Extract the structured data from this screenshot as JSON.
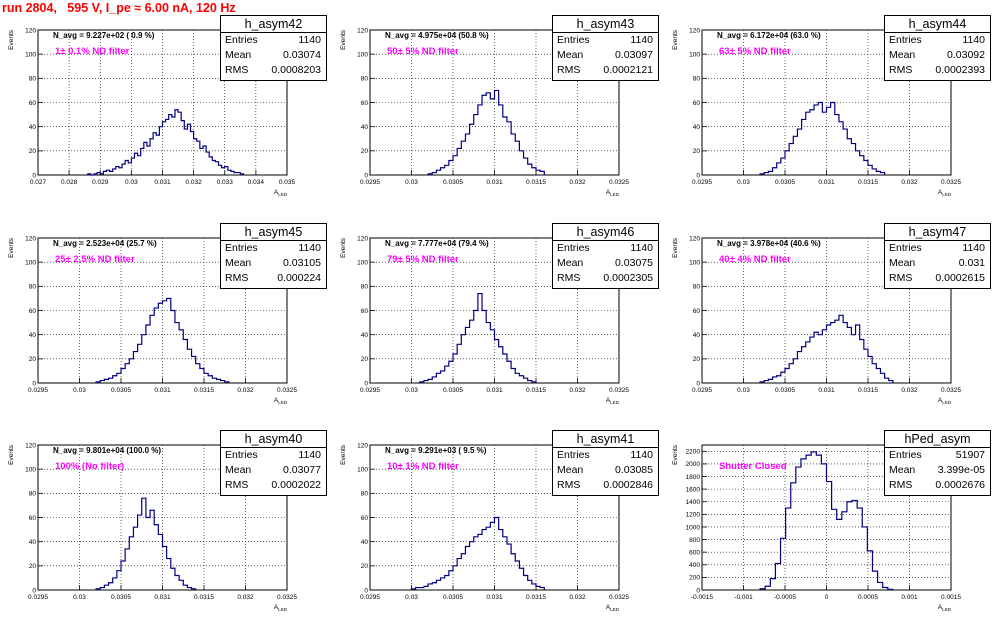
{
  "page": {
    "title": "run 2804,   595 V, I_pe ≈ 6.00 nA, 120 Hz"
  },
  "colors": {
    "histogram_line": "#000080",
    "annotation_text": "#ff00ff",
    "title_text": "#ff0000",
    "grid": "#000000"
  },
  "chart_data": [
    {
      "type": "histogram",
      "name": "h_asym42",
      "stats": {
        "entries": "1140",
        "mean": "0.03074",
        "rms": "0.0008203"
      },
      "navg": "N_avg = 9.227e+02 ( 0.9 %)",
      "filter": "1± 0.1% ND filter",
      "ylabel": "Events",
      "xlabel": "A_LED",
      "xlim": [
        0.027,
        0.035
      ],
      "ylim": [
        0,
        120
      ],
      "xticks": [
        "0.027",
        "0.028",
        "0.029",
        "0.03",
        "0.031",
        "0.032",
        "0.033",
        "0.034",
        "0.035"
      ],
      "yticks": [
        "0",
        "20",
        "40",
        "60",
        "80",
        "100",
        "120"
      ],
      "bin_edges_range": [
        0.0286,
        0.0336
      ],
      "counts": [
        1,
        0,
        1,
        2,
        1,
        3,
        4,
        3,
        5,
        7,
        6,
        9,
        12,
        10,
        14,
        18,
        16,
        22,
        27,
        24,
        30,
        35,
        33,
        40,
        44,
        46,
        50,
        48,
        54,
        52,
        45,
        38,
        42,
        36,
        30,
        28,
        22,
        24,
        19,
        15,
        12,
        11,
        8,
        6,
        7,
        4,
        3,
        2,
        2,
        1
      ]
    },
    {
      "type": "histogram",
      "name": "h_asym43",
      "stats": {
        "entries": "1140",
        "mean": "0.03097",
        "rms": "0.0002121"
      },
      "navg": "N_avg = 4.975e+04 (50.8 %)",
      "filter": "50± 5% ND filter",
      "ylabel": "Events",
      "xlabel": "A_LED",
      "xlim": [
        0.0295,
        0.0325
      ],
      "ylim": [
        0,
        120
      ],
      "xticks": [
        "0.0295",
        "0.03",
        "0.0305",
        "0.031",
        "0.0315",
        "0.032",
        "0.0325"
      ],
      "yticks": [
        "0",
        "20",
        "40",
        "60",
        "80",
        "100",
        "120"
      ],
      "bin_edges_range": [
        0.0302,
        0.0316
      ],
      "counts": [
        1,
        2,
        4,
        6,
        8,
        12,
        16,
        22,
        28,
        34,
        42,
        50,
        58,
        66,
        68,
        63,
        70,
        58,
        48,
        44,
        34,
        28,
        20,
        14,
        9,
        6,
        4,
        3
      ]
    },
    {
      "type": "histogram",
      "name": "h_asym44",
      "stats": {
        "entries": "1140",
        "mean": "0.03092",
        "rms": "0.0002393"
      },
      "navg": "N_avg = 6.172e+04 (63.0 %)",
      "filter": "63± 5% ND filter",
      "ylabel": "Events",
      "xlabel": "A_LED",
      "xlim": [
        0.0295,
        0.0325
      ],
      "ylim": [
        0,
        120
      ],
      "xticks": [
        "0.0295",
        "0.03",
        "0.0305",
        "0.031",
        "0.0315",
        "0.032",
        "0.0325"
      ],
      "yticks": [
        "0",
        "20",
        "40",
        "60",
        "80",
        "100",
        "120"
      ],
      "bin_edges_range": [
        0.0302,
        0.0317
      ],
      "counts": [
        1,
        2,
        3,
        6,
        10,
        14,
        20,
        26,
        32,
        38,
        46,
        52,
        54,
        58,
        60,
        52,
        56,
        60,
        50,
        44,
        38,
        30,
        26,
        20,
        16,
        12,
        8,
        5,
        3,
        2
      ]
    },
    {
      "type": "histogram",
      "name": "h_asym45",
      "stats": {
        "entries": "1140",
        "mean": "0.03105",
        "rms": "0.000224"
      },
      "navg": "N_avg = 2.523e+04 (25.7 %)",
      "filter": "25± 2.5% ND filter",
      "ylabel": "Events",
      "xlabel": "A_LED",
      "xlim": [
        0.0295,
        0.0325
      ],
      "ylim": [
        0,
        120
      ],
      "xticks": [
        "0.0295",
        "0.03",
        "0.0305",
        "0.031",
        "0.0315",
        "0.032",
        "0.0325"
      ],
      "yticks": [
        "0",
        "20",
        "40",
        "60",
        "80",
        "100",
        "120"
      ],
      "bin_edges_range": [
        0.0302,
        0.0318
      ],
      "counts": [
        1,
        2,
        3,
        4,
        6,
        8,
        12,
        16,
        20,
        26,
        32,
        40,
        48,
        56,
        62,
        66,
        68,
        70,
        60,
        50,
        44,
        36,
        28,
        22,
        16,
        12,
        8,
        6,
        4,
        3,
        2,
        1
      ]
    },
    {
      "type": "histogram",
      "name": "h_asym46",
      "stats": {
        "entries": "1140",
        "mean": "0.03075",
        "rms": "0.0002305"
      },
      "navg": "N_avg = 7.777e+04 (79.4 %)",
      "filter": "79± 5% ND filter",
      "ylabel": "Events",
      "xlabel": "A_LED",
      "xlim": [
        0.0295,
        0.0325
      ],
      "ylim": [
        0,
        120
      ],
      "xticks": [
        "0.0295",
        "0.03",
        "0.0305",
        "0.031",
        "0.0315",
        "0.032",
        "0.0325"
      ],
      "yticks": [
        "0",
        "20",
        "40",
        "60",
        "80",
        "100",
        "120"
      ],
      "bin_edges_range": [
        0.0301,
        0.0315
      ],
      "counts": [
        1,
        2,
        3,
        5,
        8,
        10,
        14,
        18,
        24,
        32,
        40,
        46,
        52,
        60,
        74,
        60,
        50,
        44,
        36,
        30,
        24,
        18,
        12,
        8,
        6,
        4,
        2,
        1
      ]
    },
    {
      "type": "histogram",
      "name": "h_asym47",
      "stats": {
        "entries": "1140",
        "mean": "0.031",
        "rms": "0.0002615"
      },
      "navg": "N_avg = 3.978e+04 (40.6 %)",
      "filter": "40± 4% ND filter",
      "ylabel": "Events",
      "xlabel": "A_LED",
      "xlim": [
        0.0295,
        0.0325
      ],
      "ylim": [
        0,
        120
      ],
      "xticks": [
        "0.0295",
        "0.03",
        "0.0305",
        "0.031",
        "0.0315",
        "0.032",
        "0.0325"
      ],
      "yticks": [
        "0",
        "20",
        "40",
        "60",
        "80",
        "100",
        "120"
      ],
      "bin_edges_range": [
        0.0302,
        0.0318
      ],
      "counts": [
        1,
        2,
        3,
        5,
        6,
        9,
        12,
        16,
        20,
        26,
        30,
        34,
        38,
        42,
        40,
        44,
        48,
        50,
        52,
        56,
        50,
        46,
        40,
        48,
        36,
        28,
        22,
        16,
        12,
        8,
        4,
        2
      ]
    },
    {
      "type": "histogram",
      "name": "h_asym40",
      "stats": {
        "entries": "1140",
        "mean": "0.03077",
        "rms": "0.0002022"
      },
      "navg": "N_avg = 9.801e+04 (100.0 %)",
      "filter": "100% (No filter)",
      "ylabel": "Events",
      "xlabel": "A_LED",
      "xlim": [
        0.0295,
        0.0325
      ],
      "ylim": [
        0,
        120
      ],
      "xticks": [
        "0.0295",
        "0.03",
        "0.0305",
        "0.031",
        "0.0315",
        "0.032",
        "0.0325"
      ],
      "yticks": [
        "0",
        "20",
        "40",
        "60",
        "80",
        "100",
        "120"
      ],
      "bin_edges_range": [
        0.0302,
        0.0314
      ],
      "counts": [
        1,
        2,
        4,
        6,
        10,
        16,
        24,
        34,
        44,
        52,
        62,
        76,
        60,
        66,
        54,
        46,
        36,
        26,
        18,
        12,
        8,
        4,
        2,
        1
      ]
    },
    {
      "type": "histogram",
      "name": "h_asym41",
      "stats": {
        "entries": "1140",
        "mean": "0.03085",
        "rms": "0.0002846"
      },
      "navg": "N_avg = 9.291e+03 ( 9.5 %)",
      "filter": "10± 1% ND filter",
      "ylabel": "Events",
      "xlabel": "A_LED",
      "xlim": [
        0.0295,
        0.0325
      ],
      "ylim": [
        0,
        120
      ],
      "xticks": [
        "0.0295",
        "0.03",
        "0.0305",
        "0.031",
        "0.0315",
        "0.032",
        "0.0325"
      ],
      "yticks": [
        "0",
        "20",
        "40",
        "60",
        "80",
        "100",
        "120"
      ],
      "bin_edges_range": [
        0.03,
        0.0316
      ],
      "counts": [
        1,
        2,
        2,
        3,
        5,
        6,
        8,
        10,
        12,
        16,
        20,
        26,
        30,
        36,
        40,
        44,
        46,
        50,
        52,
        56,
        60,
        50,
        44,
        38,
        30,
        24,
        18,
        12,
        8,
        5,
        3,
        2
      ]
    },
    {
      "type": "histogram",
      "name": "hPed_asym",
      "stats": {
        "entries": "51907",
        "mean": "3.399e-05",
        "rms": "0.0002676"
      },
      "navg": "",
      "filter": "Shutter Closed",
      "ylabel": "Events",
      "xlabel": "A_LED",
      "xlim": [
        -0.0015,
        0.0015
      ],
      "ylim": [
        0,
        2300
      ],
      "xticks": [
        "-0.0015",
        "-0.001",
        "-0.0005",
        "0",
        "0.0005",
        "0.001",
        "0.0015"
      ],
      "yticks": [
        "0",
        "200",
        "400",
        "600",
        "800",
        "1000",
        "1200",
        "1400",
        "1600",
        "1800",
        "2000",
        "2200"
      ],
      "bin_edges_range": [
        -0.0008,
        0.0008
      ],
      "counts": [
        20,
        60,
        180,
        420,
        820,
        1300,
        1700,
        1950,
        2080,
        2140,
        2190,
        2140,
        2000,
        1720,
        1280,
        1120,
        1240,
        1400,
        1420,
        1300,
        1000,
        620,
        300,
        120,
        40,
        10
      ]
    }
  ]
}
